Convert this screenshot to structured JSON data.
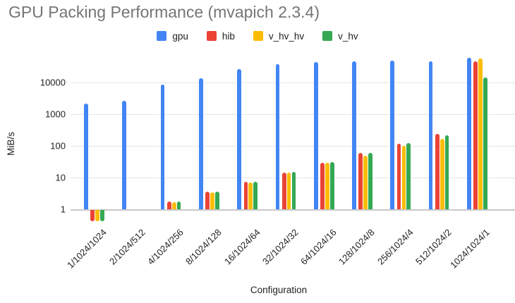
{
  "chart_data": {
    "type": "bar",
    "title": "GPU Packing Performance (mvapich 2.3.4)",
    "xlabel": "Configuration",
    "ylabel": "MiB/s",
    "y_scale": "log",
    "y_ticks": [
      1,
      10,
      100,
      1000,
      10000
    ],
    "grid": true,
    "legend_position": "top-center",
    "categories": [
      "1/1024/1024",
      "2/1024/512",
      "4/1024/256",
      "8/1024/128",
      "16/1024/64",
      "32/1024/32",
      "64/1024/16",
      "128/1024/8",
      "256/1024/4",
      "512/1024/2",
      "1024/1024/1"
    ],
    "series": [
      {
        "name": "gpu",
        "color": "#4285F4",
        "values": [
          2200,
          2700,
          8500,
          13500,
          26000,
          38000,
          45000,
          47000,
          50000,
          46000,
          60000
        ]
      },
      {
        "name": "hib",
        "color": "#EA4335",
        "values": [
          0.45,
          null,
          1.8,
          3.6,
          7.2,
          14.5,
          30,
          59,
          118,
          233,
          47000
        ]
      },
      {
        "name": "v_hv_hv",
        "color": "#FBBC04",
        "values": [
          0.45,
          null,
          1.7,
          3.5,
          7.0,
          14.5,
          30,
          50,
          98,
          163,
          58000
        ]
      },
      {
        "name": "v_hv",
        "color": "#34A853",
        "values": [
          0.45,
          null,
          1.8,
          3.6,
          7.2,
          15,
          31,
          60,
          123,
          215,
          14000
        ]
      }
    ]
  }
}
